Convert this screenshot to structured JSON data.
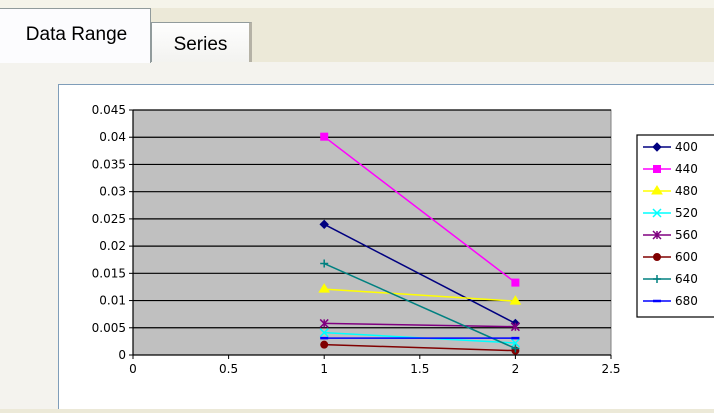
{
  "tabs": [
    {
      "label": "Data Range",
      "active": true
    },
    {
      "label": "Series",
      "active": false
    }
  ],
  "chart_data": {
    "type": "scatter",
    "plot_background": "#c0c0c0",
    "grid": "horizontal",
    "legend_placement": "right",
    "xlim": [
      0,
      2.5
    ],
    "ylim": [
      0,
      0.045
    ],
    "x_ticks": [
      "0",
      "0.5",
      "1",
      "1.5",
      "2",
      "2.5"
    ],
    "y_ticks": [
      "0",
      "0.005",
      "0.01",
      "0.015",
      "0.02",
      "0.025",
      "0.03",
      "0.035",
      "0.04",
      "0.045"
    ],
    "series": [
      {
        "name": "400",
        "color": "#000080",
        "marker": "diamond",
        "x": [
          1,
          2
        ],
        "y": [
          0.024,
          0.0058
        ]
      },
      {
        "name": "440",
        "color": "#ff00ff",
        "marker": "square",
        "x": [
          1,
          2
        ],
        "y": [
          0.0401,
          0.0133
        ]
      },
      {
        "name": "480",
        "color": "#ffff00",
        "marker": "triangle",
        "x": [
          1,
          2
        ],
        "y": [
          0.0121,
          0.0099
        ]
      },
      {
        "name": "520",
        "color": "#00ffff",
        "marker": "x",
        "x": [
          1,
          2
        ],
        "y": [
          0.0041,
          0.0022
        ]
      },
      {
        "name": "560",
        "color": "#800080",
        "marker": "star",
        "x": [
          1,
          2
        ],
        "y": [
          0.0058,
          0.0052
        ]
      },
      {
        "name": "600",
        "color": "#800000",
        "marker": "circle",
        "x": [
          1,
          2
        ],
        "y": [
          0.0019,
          0.0008
        ]
      },
      {
        "name": "640",
        "color": "#008080",
        "marker": "plus",
        "x": [
          1,
          2
        ],
        "y": [
          0.0168,
          0.0012
        ]
      },
      {
        "name": "680",
        "color": "#0000ff",
        "marker": "dash",
        "x": [
          1,
          2
        ],
        "y": [
          0.0031,
          0.0031
        ]
      }
    ]
  }
}
